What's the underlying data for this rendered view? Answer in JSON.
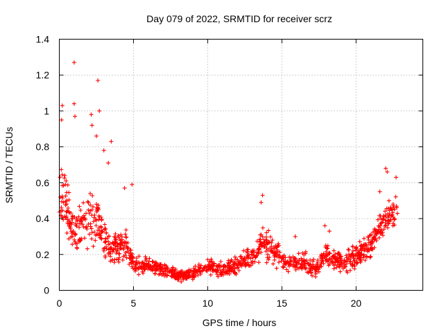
{
  "chart_data": {
    "type": "scatter",
    "title": "Day 079 of 2022, SRMTID for receiver scrz",
    "xlabel": "GPS time / hours",
    "ylabel": "SRMTID / TECUs",
    "xlim": [
      0,
      24.5
    ],
    "ylim": [
      0,
      1.4
    ],
    "x_ticks": [
      0,
      5,
      10,
      15,
      20
    ],
    "x_tick_labels": [
      "0",
      "5",
      "10",
      "15",
      "20"
    ],
    "y_ticks": [
      0,
      0.2,
      0.4,
      0.6,
      0.8,
      1.0,
      1.2,
      1.4
    ],
    "y_tick_labels": [
      "0",
      "0.2",
      "0.4",
      "0.6",
      "0.8",
      "1",
      "1.2",
      "1.4"
    ],
    "grid": true,
    "marker": "+",
    "marker_color": "#ff0000",
    "series": [
      {
        "name": "SRMTID",
        "profile": [
          {
            "t": 0.0,
            "y": 0.52,
            "spread": 0.32
          },
          {
            "t": 0.3,
            "y": 0.6,
            "spread": 0.3
          },
          {
            "t": 0.6,
            "y": 0.42,
            "spread": 0.22
          },
          {
            "t": 1.0,
            "y": 0.33,
            "spread": 0.18
          },
          {
            "t": 1.5,
            "y": 0.36,
            "spread": 0.2
          },
          {
            "t": 2.0,
            "y": 0.4,
            "spread": 0.22
          },
          {
            "t": 2.5,
            "y": 0.42,
            "spread": 0.24
          },
          {
            "t": 3.0,
            "y": 0.3,
            "spread": 0.16
          },
          {
            "t": 3.5,
            "y": 0.22,
            "spread": 0.12
          },
          {
            "t": 4.0,
            "y": 0.23,
            "spread": 0.12
          },
          {
            "t": 4.5,
            "y": 0.27,
            "spread": 0.14
          },
          {
            "t": 5.0,
            "y": 0.14,
            "spread": 0.07
          },
          {
            "t": 6.0,
            "y": 0.14,
            "spread": 0.06
          },
          {
            "t": 7.0,
            "y": 0.12,
            "spread": 0.05
          },
          {
            "t": 8.0,
            "y": 0.08,
            "spread": 0.04
          },
          {
            "t": 9.0,
            "y": 0.09,
            "spread": 0.05
          },
          {
            "t": 10.0,
            "y": 0.13,
            "spread": 0.06
          },
          {
            "t": 11.0,
            "y": 0.11,
            "spread": 0.06
          },
          {
            "t": 12.0,
            "y": 0.14,
            "spread": 0.07
          },
          {
            "t": 13.0,
            "y": 0.19,
            "spread": 0.09
          },
          {
            "t": 13.8,
            "y": 0.27,
            "spread": 0.12
          },
          {
            "t": 14.5,
            "y": 0.21,
            "spread": 0.1
          },
          {
            "t": 15.5,
            "y": 0.15,
            "spread": 0.07
          },
          {
            "t": 16.5,
            "y": 0.16,
            "spread": 0.08
          },
          {
            "t": 17.3,
            "y": 0.12,
            "spread": 0.06
          },
          {
            "t": 18.0,
            "y": 0.2,
            "spread": 0.09
          },
          {
            "t": 19.0,
            "y": 0.16,
            "spread": 0.08
          },
          {
            "t": 20.0,
            "y": 0.19,
            "spread": 0.09
          },
          {
            "t": 21.0,
            "y": 0.24,
            "spread": 0.1
          },
          {
            "t": 21.5,
            "y": 0.34,
            "spread": 0.1
          },
          {
            "t": 22.0,
            "y": 0.38,
            "spread": 0.12
          },
          {
            "t": 22.4,
            "y": 0.42,
            "spread": 0.12
          },
          {
            "t": 22.8,
            "y": 0.45,
            "spread": 0.12
          }
        ],
        "t_start": 0.0,
        "t_end": 22.8,
        "n_points": 1350,
        "outliers": [
          {
            "t": 0.2,
            "y": 1.03
          },
          {
            "t": 0.15,
            "y": 0.95
          },
          {
            "t": 1.0,
            "y": 1.27
          },
          {
            "t": 1.0,
            "y": 1.04
          },
          {
            "t": 1.05,
            "y": 0.97
          },
          {
            "t": 2.15,
            "y": 0.98
          },
          {
            "t": 2.6,
            "y": 1.17
          },
          {
            "t": 2.7,
            "y": 1.0
          },
          {
            "t": 2.2,
            "y": 0.92
          },
          {
            "t": 2.5,
            "y": 0.86
          },
          {
            "t": 3.5,
            "y": 0.83
          },
          {
            "t": 3.0,
            "y": 0.78
          },
          {
            "t": 3.3,
            "y": 0.71
          },
          {
            "t": 4.9,
            "y": 0.59
          },
          {
            "t": 4.4,
            "y": 0.57
          },
          {
            "t": 13.7,
            "y": 0.53
          },
          {
            "t": 13.6,
            "y": 0.49
          },
          {
            "t": 22.0,
            "y": 0.68
          },
          {
            "t": 22.1,
            "y": 0.66
          },
          {
            "t": 22.7,
            "y": 0.63
          },
          {
            "t": 21.6,
            "y": 0.55
          },
          {
            "t": 17.9,
            "y": 0.36
          },
          {
            "t": 18.2,
            "y": 0.33
          },
          {
            "t": 15.9,
            "y": 0.3
          }
        ]
      }
    ]
  }
}
